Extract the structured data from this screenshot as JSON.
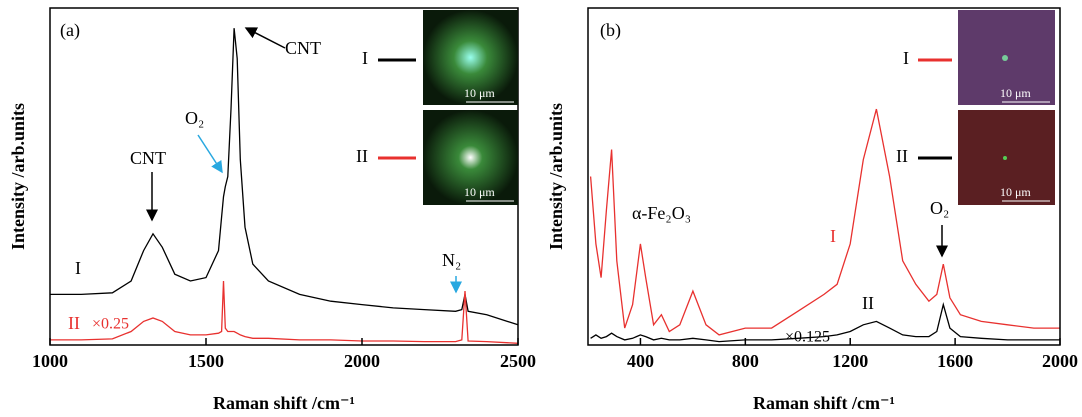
{
  "chart_data": [
    {
      "type": "line",
      "panel_label": "(a)",
      "xlabel": "Raman shift /cm⁻¹",
      "ylabel": "Intensity /arb.units",
      "x": [
        1000,
        1100,
        1200,
        1260,
        1300,
        1330,
        1360,
        1400,
        1450,
        1500,
        1540,
        1550,
        1556,
        1562,
        1570,
        1580,
        1590,
        1600,
        1610,
        1625,
        1650,
        1700,
        1800,
        1900,
        2000,
        2100,
        2200,
        2300,
        2320,
        2330,
        2340,
        2400,
        2500
      ],
      "xlim": [
        1000,
        2500
      ],
      "xticks": [
        1000,
        1500,
        2000,
        2500
      ],
      "ylim": [
        0,
        100
      ],
      "series": [
        {
          "name": "I",
          "color": "#000000",
          "values": [
            15,
            15,
            15.5,
            19,
            28,
            33,
            29,
            21,
            19,
            20,
            28,
            38,
            44,
            47,
            50,
            70,
            94,
            85,
            55,
            35,
            24,
            19,
            15,
            13,
            12,
            11,
            10.5,
            10,
            10.5,
            15,
            10,
            9,
            6
          ]
        },
        {
          "name": "II",
          "color": "#e8312f",
          "values": [
            1.5,
            1.5,
            1.8,
            4,
            7,
            8,
            7,
            4,
            3,
            3,
            3.5,
            4,
            19,
            5,
            4,
            4,
            4,
            3.5,
            3,
            2.5,
            2,
            2,
            1.5,
            1.5,
            1.2,
            1.2,
            1,
            1,
            1.5,
            16,
            1.2,
            1,
            0.5
          ]
        }
      ],
      "annotations": [
        "CNT",
        "O₂",
        "CNT",
        "N₂",
        "×0.25"
      ],
      "scale_bar": "10 μm"
    },
    {
      "type": "line",
      "panel_label": "(b)",
      "xlabel": "Raman shift /cm⁻¹",
      "ylabel": "Intensity /arb.units",
      "x": [
        210,
        230,
        250,
        270,
        290,
        310,
        340,
        370,
        400,
        420,
        450,
        480,
        510,
        550,
        600,
        650,
        700,
        800,
        900,
        1000,
        1100,
        1150,
        1200,
        1250,
        1300,
        1350,
        1400,
        1450,
        1500,
        1530,
        1555,
        1580,
        1620,
        1700,
        1800,
        1900,
        2000
      ],
      "xlim": [
        200,
        2000
      ],
      "xticks": [
        400,
        800,
        1200,
        1600,
        2000
      ],
      "ylim": [
        0,
        100
      ],
      "series": [
        {
          "name": "I",
          "color": "#e8312f",
          "values": [
            50,
            30,
            20,
            40,
            58,
            25,
            5,
            12,
            30,
            20,
            6,
            9,
            4,
            6,
            16,
            6,
            3,
            5,
            5,
            10,
            15,
            18,
            30,
            55,
            70,
            50,
            25,
            18,
            13,
            15,
            24,
            14,
            9,
            7,
            6,
            5,
            5
          ]
        },
        {
          "name": "II",
          "color": "#000000",
          "values": [
            2,
            3,
            2,
            2.5,
            3.5,
            2.5,
            1.5,
            2,
            3,
            2.5,
            1.5,
            2,
            1.5,
            1.5,
            2,
            1.5,
            1,
            1.5,
            1.5,
            2,
            2.5,
            3,
            4,
            6,
            7,
            5,
            3,
            2.5,
            2.5,
            4,
            12,
            5,
            2.5,
            2,
            1.5,
            1.5,
            1.5
          ]
        }
      ],
      "annotations": [
        "α-Fe₂O₃",
        "×0.125",
        "O₂"
      ],
      "scale_bar": "10 μm"
    }
  ]
}
